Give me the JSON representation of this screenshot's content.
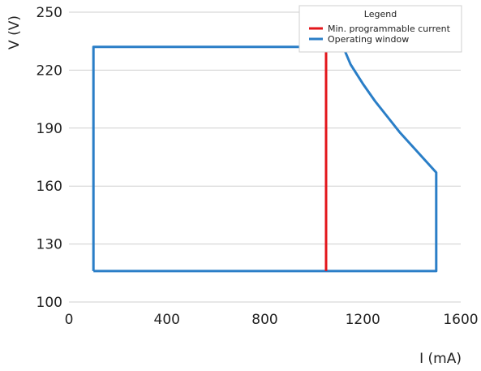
{
  "chart_data": {
    "type": "line",
    "xlabel": "I (mA)",
    "ylabel": "V (V)",
    "xlim": [
      0,
      1600
    ],
    "ylim": [
      100,
      250
    ],
    "xticks": [
      0,
      400,
      800,
      1200,
      1600
    ],
    "yticks": [
      100,
      130,
      160,
      190,
      220,
      250
    ],
    "grid": "horizontal",
    "legend": {
      "title": "Legend",
      "placement": "top-right"
    },
    "series": [
      {
        "name": "Min. programmable current",
        "color": "#e3161b",
        "x": [
          1050,
          1050
        ],
        "y": [
          116,
          232
        ]
      },
      {
        "name": "Operating window",
        "color": "#2a7ec7",
        "x": [
          100,
          100,
          1120,
          1150,
          1200,
          1250,
          1300,
          1350,
          1400,
          1450,
          1500,
          1500,
          100
        ],
        "y": [
          116,
          232,
          232,
          223,
          213,
          204,
          196,
          188,
          181,
          174,
          167,
          116,
          116
        ]
      }
    ]
  }
}
